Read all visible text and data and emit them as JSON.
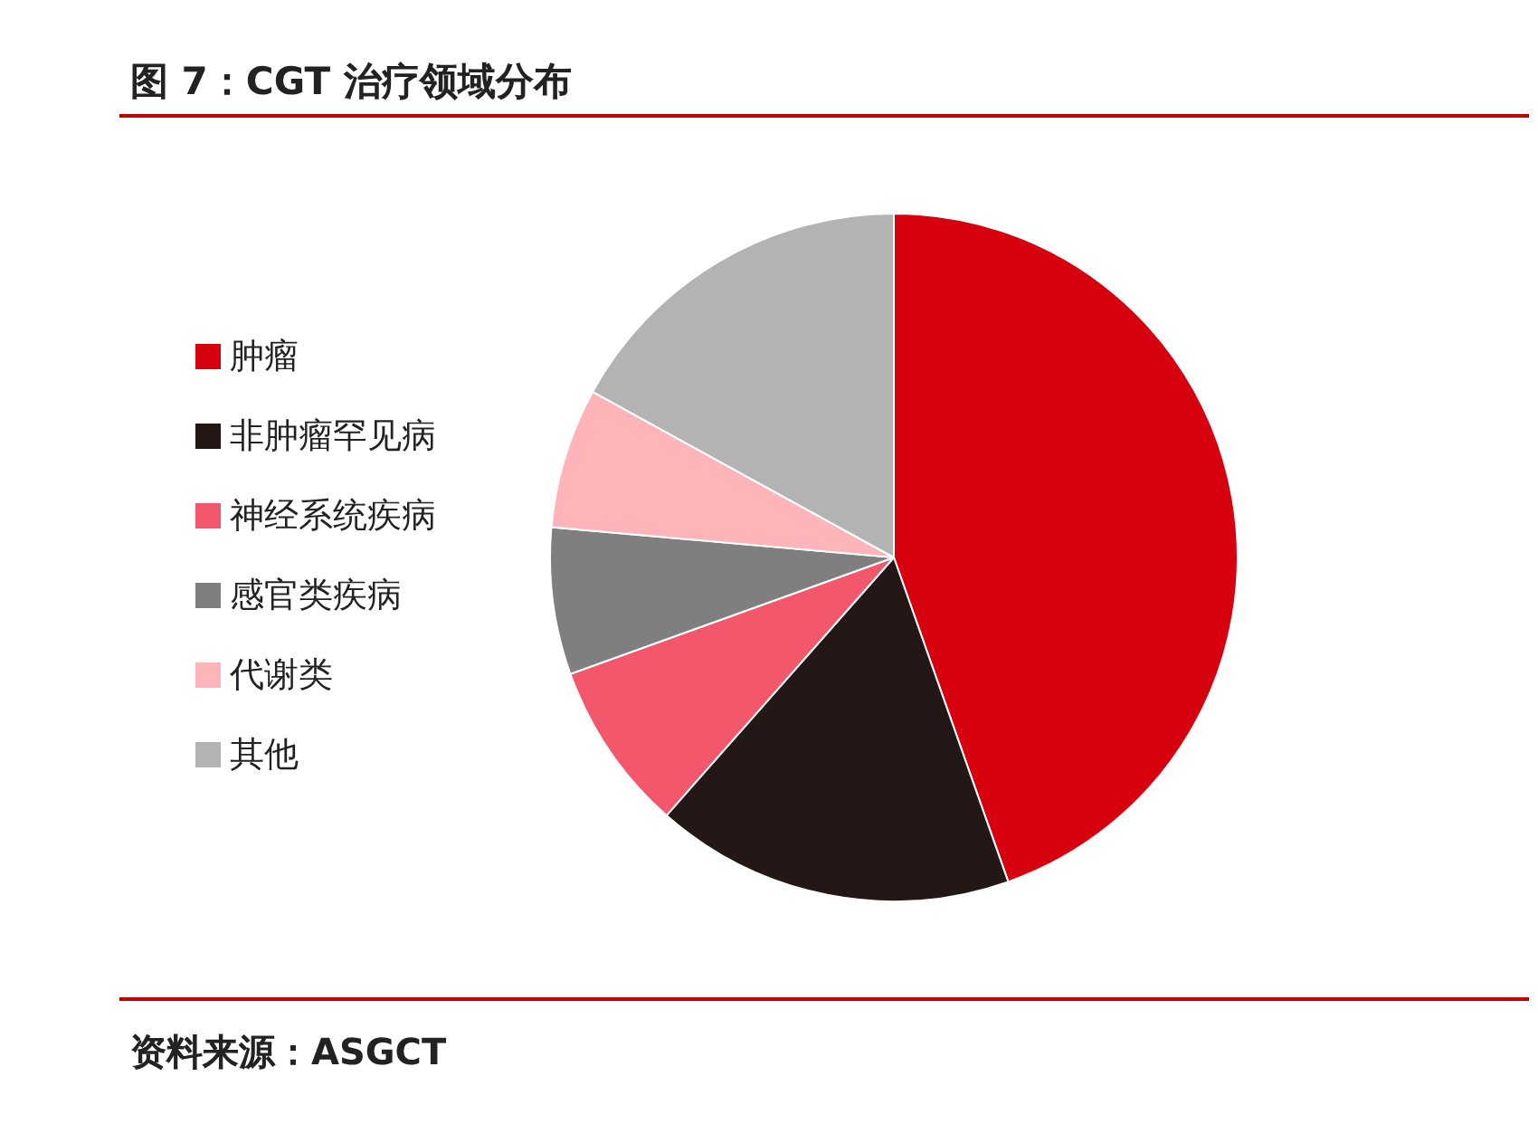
{
  "chart_data": {
    "type": "pie",
    "title": "图 7：CGT 治疗领域分布",
    "categories": [
      "肿瘤",
      "非肿瘤罕见病",
      "神经系统疾病",
      "感官类疾病",
      "代谢类",
      "其他"
    ],
    "values": [
      44.6,
      16.9,
      8.0,
      6.9,
      6.6,
      17.0
    ],
    "colors": [
      "#d7000f",
      "#231816",
      "#f2576b",
      "#7f7f7f",
      "#ffb4b9",
      "#b3b3b3"
    ],
    "legend": "left",
    "annotations": [
      "资料来源：ASGCT"
    ]
  }
}
